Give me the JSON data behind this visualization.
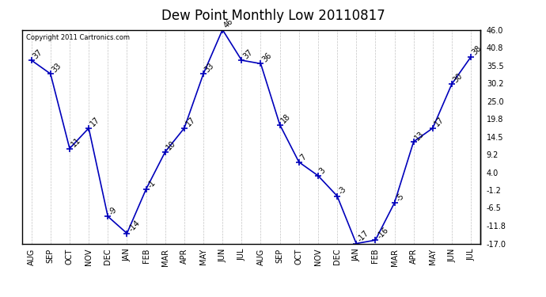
{
  "title": "Dew Point Monthly Low 20110817",
  "copyright": "Copyright 2011 Cartronics.com",
  "months": [
    "AUG",
    "SEP",
    "OCT",
    "NOV",
    "DEC",
    "JAN",
    "FEB",
    "MAR",
    "APR",
    "MAY",
    "JUN",
    "JUL",
    "AUG",
    "SEP",
    "OCT",
    "NOV",
    "DEC",
    "JAN",
    "FEB",
    "MAR",
    "APR",
    "MAY",
    "JUN",
    "JUL"
  ],
  "values": [
    37,
    33,
    11,
    17,
    -9,
    -14,
    -1,
    10,
    17,
    33,
    46,
    37,
    36,
    18,
    7,
    3,
    -3,
    -17,
    -16,
    -5,
    13,
    17,
    30,
    38
  ],
  "ylim": [
    -17.0,
    46.0
  ],
  "yticks_right": [
    46.0,
    40.8,
    35.5,
    30.2,
    25.0,
    19.8,
    14.5,
    9.2,
    4.0,
    -1.2,
    -6.5,
    -11.8,
    -17.0
  ],
  "line_color": "#0000BB",
  "marker": "+",
  "marker_size": 6,
  "grid_color": "#AAAAAA",
  "bg_color": "#FFFFFF",
  "title_fontsize": 12,
  "label_fontsize": 7,
  "annotation_fontsize": 7,
  "copyright_fontsize": 6
}
